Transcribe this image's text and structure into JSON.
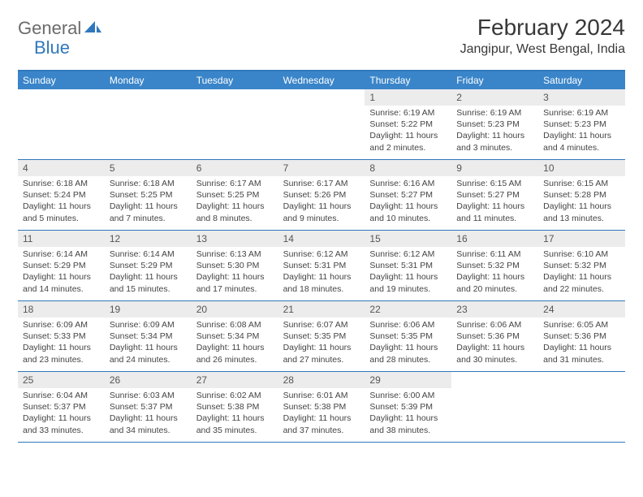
{
  "logo": {
    "part1": "General",
    "part2": "Blue"
  },
  "title": "February 2024",
  "location": "Jangipur, West Bengal, India",
  "day_headers": [
    "Sunday",
    "Monday",
    "Tuesday",
    "Wednesday",
    "Thursday",
    "Friday",
    "Saturday"
  ],
  "colors": {
    "header_bg": "#3a85c9",
    "border": "#2f78bd",
    "daynum_bg": "#ececec",
    "text": "#333333"
  },
  "weeks": [
    [
      null,
      null,
      null,
      null,
      {
        "n": "1",
        "sr": "Sunrise: 6:19 AM",
        "ss": "Sunset: 5:22 PM",
        "dl": "Daylight: 11 hours and 2 minutes."
      },
      {
        "n": "2",
        "sr": "Sunrise: 6:19 AM",
        "ss": "Sunset: 5:23 PM",
        "dl": "Daylight: 11 hours and 3 minutes."
      },
      {
        "n": "3",
        "sr": "Sunrise: 6:19 AM",
        "ss": "Sunset: 5:23 PM",
        "dl": "Daylight: 11 hours and 4 minutes."
      }
    ],
    [
      {
        "n": "4",
        "sr": "Sunrise: 6:18 AM",
        "ss": "Sunset: 5:24 PM",
        "dl": "Daylight: 11 hours and 5 minutes."
      },
      {
        "n": "5",
        "sr": "Sunrise: 6:18 AM",
        "ss": "Sunset: 5:25 PM",
        "dl": "Daylight: 11 hours and 7 minutes."
      },
      {
        "n": "6",
        "sr": "Sunrise: 6:17 AM",
        "ss": "Sunset: 5:25 PM",
        "dl": "Daylight: 11 hours and 8 minutes."
      },
      {
        "n": "7",
        "sr": "Sunrise: 6:17 AM",
        "ss": "Sunset: 5:26 PM",
        "dl": "Daylight: 11 hours and 9 minutes."
      },
      {
        "n": "8",
        "sr": "Sunrise: 6:16 AM",
        "ss": "Sunset: 5:27 PM",
        "dl": "Daylight: 11 hours and 10 minutes."
      },
      {
        "n": "9",
        "sr": "Sunrise: 6:15 AM",
        "ss": "Sunset: 5:27 PM",
        "dl": "Daylight: 11 hours and 11 minutes."
      },
      {
        "n": "10",
        "sr": "Sunrise: 6:15 AM",
        "ss": "Sunset: 5:28 PM",
        "dl": "Daylight: 11 hours and 13 minutes."
      }
    ],
    [
      {
        "n": "11",
        "sr": "Sunrise: 6:14 AM",
        "ss": "Sunset: 5:29 PM",
        "dl": "Daylight: 11 hours and 14 minutes."
      },
      {
        "n": "12",
        "sr": "Sunrise: 6:14 AM",
        "ss": "Sunset: 5:29 PM",
        "dl": "Daylight: 11 hours and 15 minutes."
      },
      {
        "n": "13",
        "sr": "Sunrise: 6:13 AM",
        "ss": "Sunset: 5:30 PM",
        "dl": "Daylight: 11 hours and 17 minutes."
      },
      {
        "n": "14",
        "sr": "Sunrise: 6:12 AM",
        "ss": "Sunset: 5:31 PM",
        "dl": "Daylight: 11 hours and 18 minutes."
      },
      {
        "n": "15",
        "sr": "Sunrise: 6:12 AM",
        "ss": "Sunset: 5:31 PM",
        "dl": "Daylight: 11 hours and 19 minutes."
      },
      {
        "n": "16",
        "sr": "Sunrise: 6:11 AM",
        "ss": "Sunset: 5:32 PM",
        "dl": "Daylight: 11 hours and 20 minutes."
      },
      {
        "n": "17",
        "sr": "Sunrise: 6:10 AM",
        "ss": "Sunset: 5:32 PM",
        "dl": "Daylight: 11 hours and 22 minutes."
      }
    ],
    [
      {
        "n": "18",
        "sr": "Sunrise: 6:09 AM",
        "ss": "Sunset: 5:33 PM",
        "dl": "Daylight: 11 hours and 23 minutes."
      },
      {
        "n": "19",
        "sr": "Sunrise: 6:09 AM",
        "ss": "Sunset: 5:34 PM",
        "dl": "Daylight: 11 hours and 24 minutes."
      },
      {
        "n": "20",
        "sr": "Sunrise: 6:08 AM",
        "ss": "Sunset: 5:34 PM",
        "dl": "Daylight: 11 hours and 26 minutes."
      },
      {
        "n": "21",
        "sr": "Sunrise: 6:07 AM",
        "ss": "Sunset: 5:35 PM",
        "dl": "Daylight: 11 hours and 27 minutes."
      },
      {
        "n": "22",
        "sr": "Sunrise: 6:06 AM",
        "ss": "Sunset: 5:35 PM",
        "dl": "Daylight: 11 hours and 28 minutes."
      },
      {
        "n": "23",
        "sr": "Sunrise: 6:06 AM",
        "ss": "Sunset: 5:36 PM",
        "dl": "Daylight: 11 hours and 30 minutes."
      },
      {
        "n": "24",
        "sr": "Sunrise: 6:05 AM",
        "ss": "Sunset: 5:36 PM",
        "dl": "Daylight: 11 hours and 31 minutes."
      }
    ],
    [
      {
        "n": "25",
        "sr": "Sunrise: 6:04 AM",
        "ss": "Sunset: 5:37 PM",
        "dl": "Daylight: 11 hours and 33 minutes."
      },
      {
        "n": "26",
        "sr": "Sunrise: 6:03 AM",
        "ss": "Sunset: 5:37 PM",
        "dl": "Daylight: 11 hours and 34 minutes."
      },
      {
        "n": "27",
        "sr": "Sunrise: 6:02 AM",
        "ss": "Sunset: 5:38 PM",
        "dl": "Daylight: 11 hours and 35 minutes."
      },
      {
        "n": "28",
        "sr": "Sunrise: 6:01 AM",
        "ss": "Sunset: 5:38 PM",
        "dl": "Daylight: 11 hours and 37 minutes."
      },
      {
        "n": "29",
        "sr": "Sunrise: 6:00 AM",
        "ss": "Sunset: 5:39 PM",
        "dl": "Daylight: 11 hours and 38 minutes."
      },
      null,
      null
    ]
  ]
}
